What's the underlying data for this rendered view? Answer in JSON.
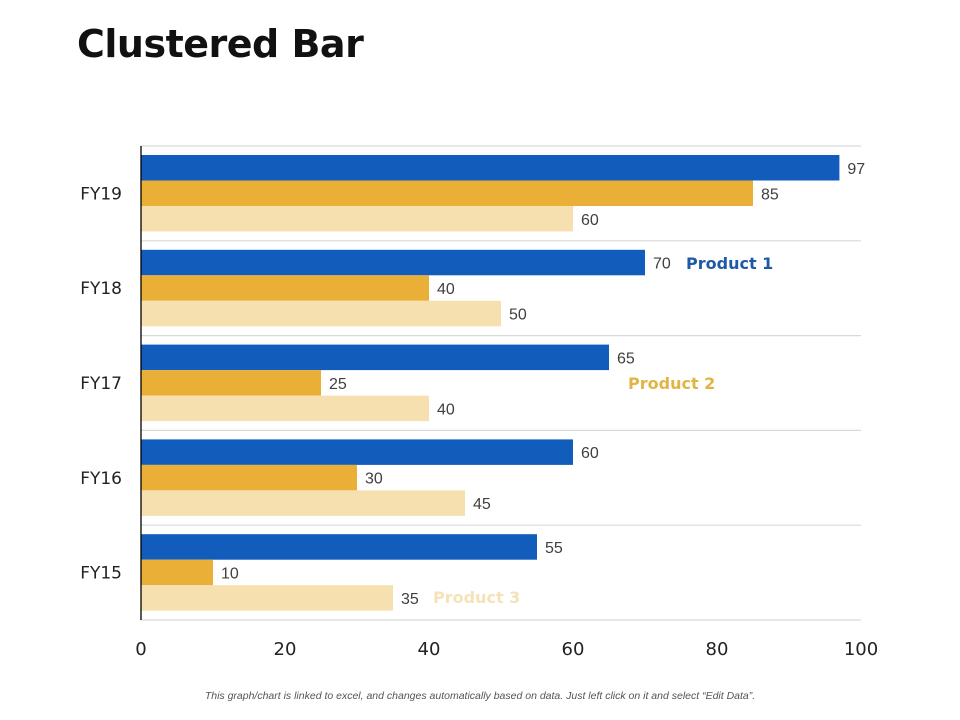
{
  "page": {
    "title": "Clustered Bar",
    "footnote": "This graph/chart is linked to excel, and changes automatically  based on data. Just left click on it and select “Edit Data”."
  },
  "colors": {
    "product1": "#125DBC",
    "product2": "#EAAF37",
    "product3": "#F7E0B0",
    "product1_label": "#1F5AA6",
    "product2_label": "#E2B443",
    "product3_label": "#F5E2B8",
    "gridline": "#D9D9D9",
    "axis": "#000000",
    "data_label": "#404040",
    "tick_label": "#222222"
  },
  "chart_data": {
    "type": "bar",
    "orientation": "horizontal",
    "title": "Clustered Bar",
    "xlabel": "",
    "ylabel": "",
    "xlim": [
      0,
      100
    ],
    "x_ticks": [
      "0",
      "20",
      "40",
      "60",
      "80",
      "100"
    ],
    "x_tick_values": [
      0,
      20,
      40,
      60,
      80,
      100
    ],
    "grid": "horizontal separators between categories",
    "categories": [
      "FY19",
      "FY18",
      "FY17",
      "FY16",
      "FY15"
    ],
    "series": [
      {
        "name": "Product 1",
        "values": [
          97,
          70,
          65,
          60,
          55
        ]
      },
      {
        "name": "Product 2",
        "values": [
          85,
          40,
          25,
          30,
          10
        ]
      },
      {
        "name": "Product 3",
        "values": [
          60,
          50,
          40,
          45,
          35
        ]
      }
    ],
    "series_label_annotations": [
      {
        "text": "Product 1",
        "series": "Product 1",
        "near_category": "FY18",
        "placement": "right of bar label"
      },
      {
        "text": "Product 2",
        "series": "Product 2",
        "near_category": "FY17",
        "placement": "below Product 1 label"
      },
      {
        "text": "Product 3",
        "series": "Product 3",
        "near_category": "FY15",
        "placement": "right of bar label"
      }
    ],
    "legend": "inline annotations"
  }
}
